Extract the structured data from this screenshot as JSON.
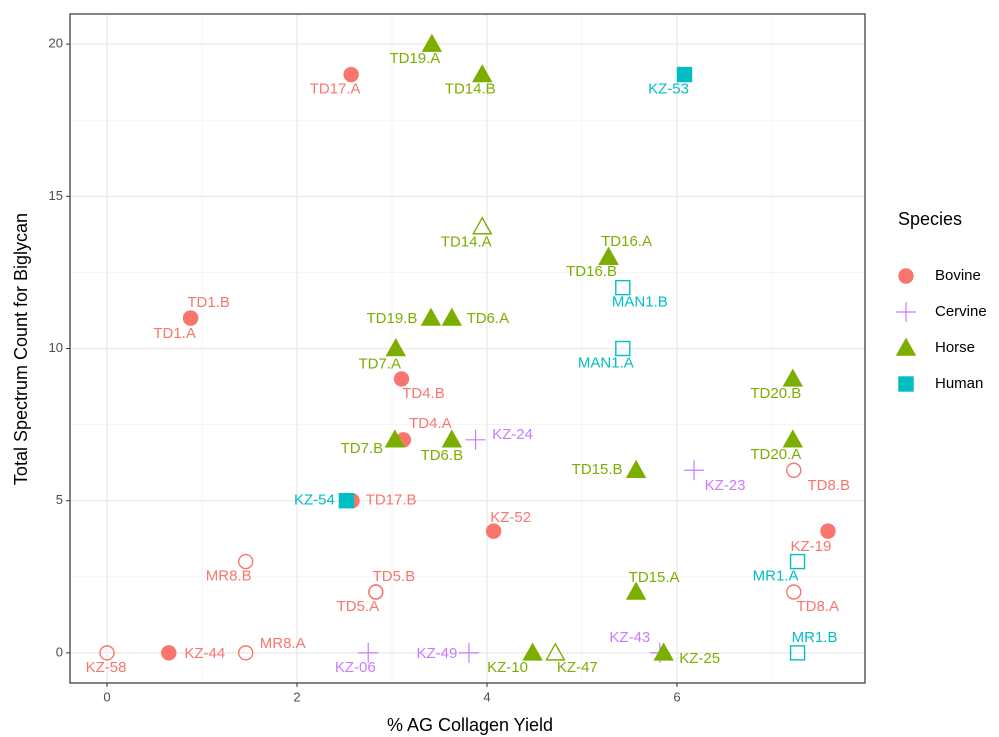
{
  "chart_data": {
    "type": "scatter",
    "x_label": "% AG Collagen Yield",
    "y_label": "Total Spectrum Count for Biglycan",
    "legend_title": "Species",
    "legend": "right",
    "grid": true,
    "xlim": [
      -0.39,
      7.98
    ],
    "xticks": [
      0,
      2,
      4,
      6
    ],
    "ylim": [
      -0.99,
      20.99
    ],
    "yticks": [
      0,
      5,
      10,
      15,
      20
    ],
    "series": [
      {
        "name": "Bovine",
        "color": "#F8766D",
        "shape": "circle",
        "x": [
          2.57,
          0.88,
          0.88,
          3.1,
          3.12,
          2.58,
          4.07,
          1.46,
          2.83,
          2.83,
          0,
          0.65,
          1.46,
          7.23,
          7.59,
          7.23
        ],
        "values": [
          19,
          11,
          11,
          9,
          7,
          5,
          4,
          3,
          2,
          2,
          0,
          0,
          0,
          6,
          4,
          2
        ],
        "labels": [
          "TD17.A",
          "TD1.A",
          "TD1.B",
          "TD4.B",
          "TD4.A",
          "TD17.B",
          "KZ-52",
          "MR8.B",
          "TD5.B",
          "TD5.A",
          "KZ-58",
          "KZ-44",
          "MR8.A",
          "TD8.B",
          "KZ-19",
          "TD8.A"
        ],
        "filled": [
          true,
          true,
          false,
          true,
          true,
          true,
          true,
          false,
          false,
          false,
          false,
          true,
          false,
          false,
          true,
          false
        ]
      },
      {
        "name": "Cervine",
        "color": "#C77CFF",
        "shape": "plus",
        "x": [
          3.88,
          6.18,
          2.75,
          3.81,
          5.82
        ],
        "values": [
          7,
          6,
          0,
          0,
          0
        ],
        "labels": [
          "KZ-24",
          "KZ-23",
          "KZ-06",
          "KZ-49",
          "KZ-43"
        ],
        "filled": [
          true,
          true,
          true,
          true,
          true
        ]
      },
      {
        "name": "Horse",
        "color": "#7CAE00",
        "shape": "triangle",
        "x": [
          3.42,
          3.95,
          3.95,
          5.28,
          5.28,
          3.41,
          3.63,
          3.04,
          3.03,
          3.63,
          5.57,
          7.22,
          7.22,
          5.57,
          4.48,
          4.72,
          5.86
        ],
        "values": [
          20,
          19,
          14,
          13,
          13,
          11,
          11,
          10,
          7,
          7,
          6,
          9,
          7,
          2,
          0,
          0,
          0
        ],
        "labels": [
          "TD19.A",
          "TD14.B",
          "TD14.A",
          "TD16.A",
          "TD16.B",
          "TD19.B",
          "TD6.A",
          "TD7.A",
          "TD7.B",
          "TD6.B",
          "TD15.B",
          "TD20.B",
          "TD20.A",
          "TD15.A",
          "KZ-10",
          "KZ-47",
          "KZ-25"
        ],
        "filled": [
          true,
          true,
          false,
          true,
          true,
          true,
          true,
          true,
          true,
          true,
          true,
          true,
          true,
          true,
          true,
          false,
          true
        ]
      },
      {
        "name": "Human",
        "color": "#00BFC4",
        "shape": "square",
        "x": [
          6.08,
          5.43,
          5.43,
          2.52,
          7.27,
          7.27
        ],
        "values": [
          19,
          12,
          10,
          5,
          3,
          0
        ],
        "labels": [
          "KZ-53",
          "MAN1.B",
          "MAN1.A",
          "KZ-54",
          "MR1.A",
          "MR1.B"
        ],
        "filled": [
          true,
          false,
          false,
          true,
          false,
          false
        ]
      }
    ]
  }
}
